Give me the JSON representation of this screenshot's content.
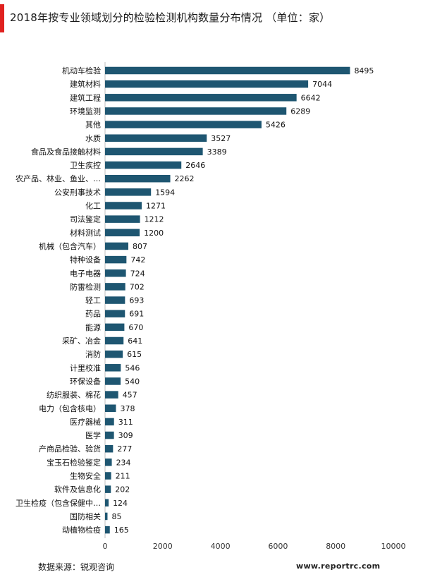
{
  "title": "2018年按专业领域划分的检验检测机构数量分布情况 （单位：家）",
  "source": "数据来源：锐观咨询",
  "watermark": "www.reportrc.com",
  "colors": {
    "bar": "#1e5671",
    "accent": "#e0211f",
    "axis": "#bfbfbf"
  },
  "chart_data": {
    "type": "bar",
    "orientation": "horizontal",
    "title": "2018年按专业领域划分的检验检测机构数量分布情况 （单位：家）",
    "xlim": [
      0,
      10000
    ],
    "xticks": [
      0,
      2000,
      4000,
      6000,
      8000,
      10000
    ],
    "grid": false,
    "categories": [
      "机动车检验",
      "建筑材料",
      "建筑工程",
      "环境监测",
      "其他",
      "水质",
      "食品及食品接触材料",
      "卫生疾控",
      "农产品、林业、鱼业、…",
      "公安刑事技术",
      "化工",
      "司法鉴定",
      "材料测试",
      "机械（包含汽车）",
      "特种设备",
      "电子电器",
      "防雷检测",
      "轻工",
      "药品",
      "能源",
      "采矿、冶金",
      "消防",
      "计里校准",
      "环保设备",
      "纺织服装、棉花",
      "电力（包含核电）",
      "医疗器械",
      "医学",
      "产商品检验、验货",
      "宝玉石检验鉴定",
      "生物安全",
      "软件及信息化",
      "卫生检疫（包含保健中…",
      "国防相关",
      "动植物检疫"
    ],
    "values": [
      8495,
      7044,
      6642,
      6289,
      5426,
      3527,
      3389,
      2646,
      2262,
      1594,
      1271,
      1212,
      1200,
      807,
      742,
      724,
      702,
      693,
      691,
      670,
      641,
      615,
      546,
      540,
      457,
      378,
      311,
      309,
      277,
      234,
      211,
      202,
      124,
      85,
      165
    ]
  }
}
